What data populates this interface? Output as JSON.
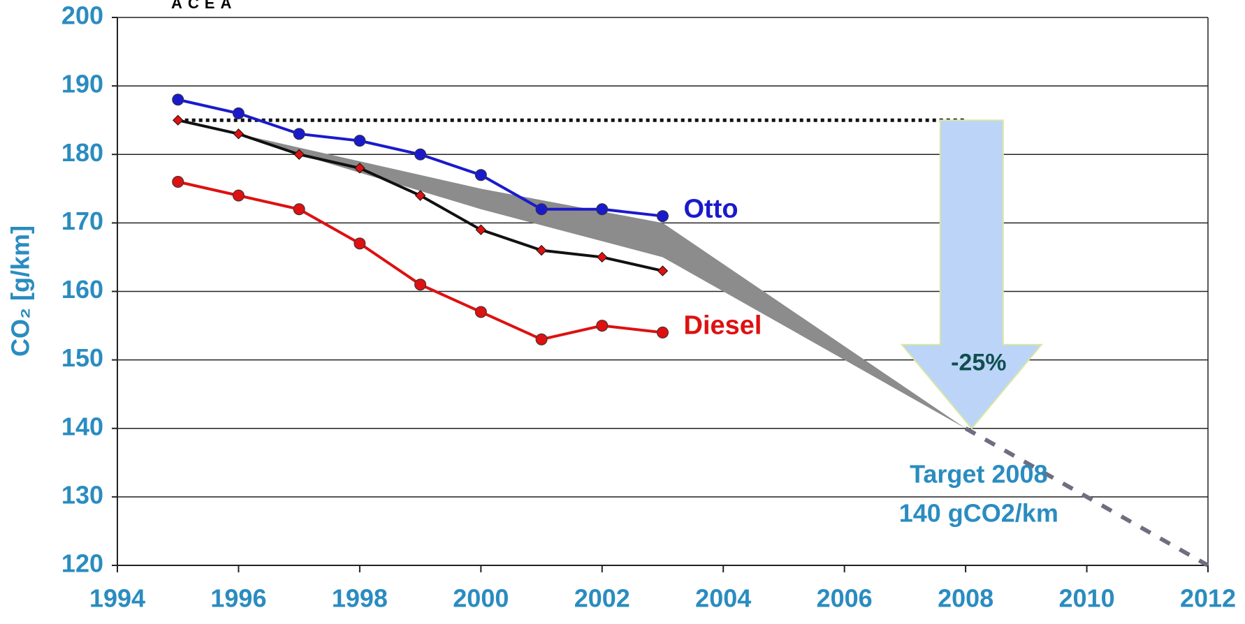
{
  "chart_data": {
    "type": "line",
    "source": "ACEA",
    "y_label": "CO₂ [g/km]",
    "xlim": [
      1994,
      2012
    ],
    "xticks": [
      1994,
      1996,
      1998,
      2000,
      2002,
      2004,
      2006,
      2008,
      2010,
      2012
    ],
    "ylim": [
      120,
      200
    ],
    "yticks": [
      120,
      130,
      140,
      150,
      160,
      170,
      180,
      190,
      200
    ],
    "grid": true,
    "x": [
      1995,
      1996,
      1997,
      1998,
      1999,
      2000,
      2001,
      2002,
      2003
    ],
    "series": [
      {
        "name": "Otto",
        "color": "#1a1acc",
        "marker": "circle",
        "values": [
          188,
          186,
          183,
          182,
          180,
          177,
          172,
          172,
          171
        ]
      },
      {
        "color": "#111111",
        "marker": "diamond",
        "values": [
          185,
          183,
          180,
          178,
          174,
          169,
          166,
          165,
          163
        ]
      },
      {
        "name": "Diesel",
        "color": "#dd1111",
        "marker": "circle",
        "values": [
          176,
          174,
          172,
          167,
          161,
          157,
          153,
          155,
          154
        ]
      }
    ],
    "band": {
      "color": "#8c8c8c",
      "x": [
        1996,
        1997,
        2000,
        2003,
        2008
      ],
      "upper": [
        183,
        181,
        175,
        170,
        140
      ],
      "lower": [
        183,
        180,
        172,
        165,
        140
      ]
    },
    "reference": {
      "value": 185,
      "x": [
        1995,
        2008
      ]
    },
    "trend": {
      "color": "#6e6e80",
      "x": [
        2008,
        2012
      ],
      "values": [
        140,
        120
      ]
    },
    "arrow": {
      "x": 2008.1,
      "from": 185,
      "to": 140,
      "label": "-25%",
      "color": "#bcd4f8"
    },
    "target_label": [
      "Target 2008",
      "140 gCO2/km"
    ]
  }
}
